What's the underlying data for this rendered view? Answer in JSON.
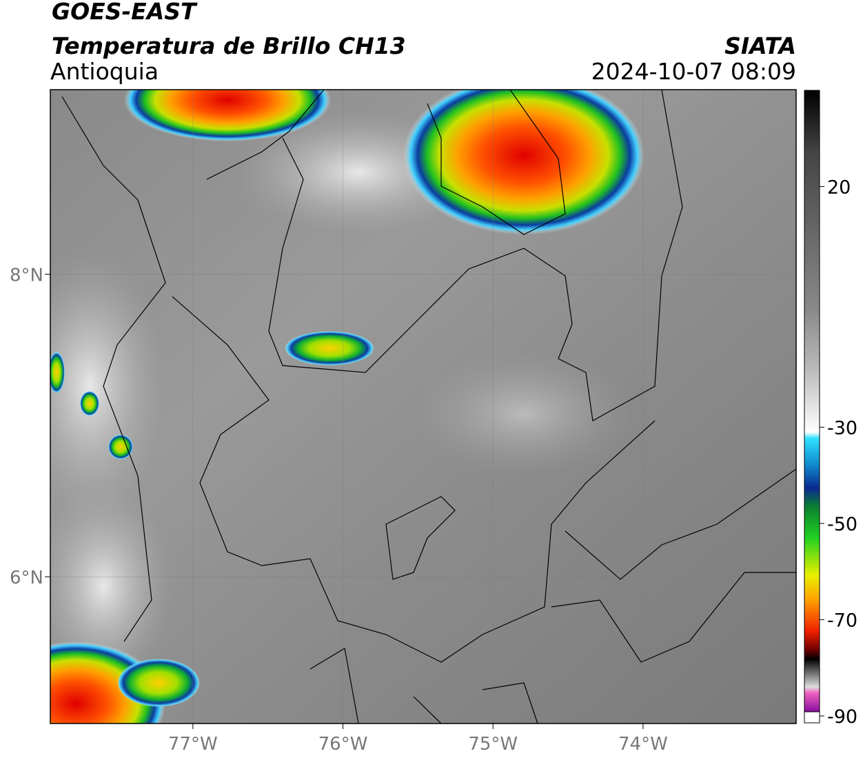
{
  "header": {
    "satellite": "GOES-EAST",
    "product": "Temperatura de Brillo CH13",
    "region": "Antioquia",
    "agency": "SIATA",
    "datetime": "2024-10-07 08:09"
  },
  "map": {
    "xlim": [
      -77.95,
      -72.98
    ],
    "ylim": [
      5.03,
      9.22
    ],
    "xticks": [
      {
        "value": -77,
        "label": "77°W"
      },
      {
        "value": -76,
        "label": "76°W"
      },
      {
        "value": -75,
        "label": "75°W"
      },
      {
        "value": -74,
        "label": "74°W"
      }
    ],
    "yticks": [
      {
        "value": 8,
        "label": "8°N"
      },
      {
        "value": 6,
        "label": "6°N"
      }
    ],
    "grid": true
  },
  "colorbar": {
    "lim": [
      -90,
      40
    ],
    "ticks": [
      20,
      -30,
      -50,
      -70,
      -90
    ]
  }
}
